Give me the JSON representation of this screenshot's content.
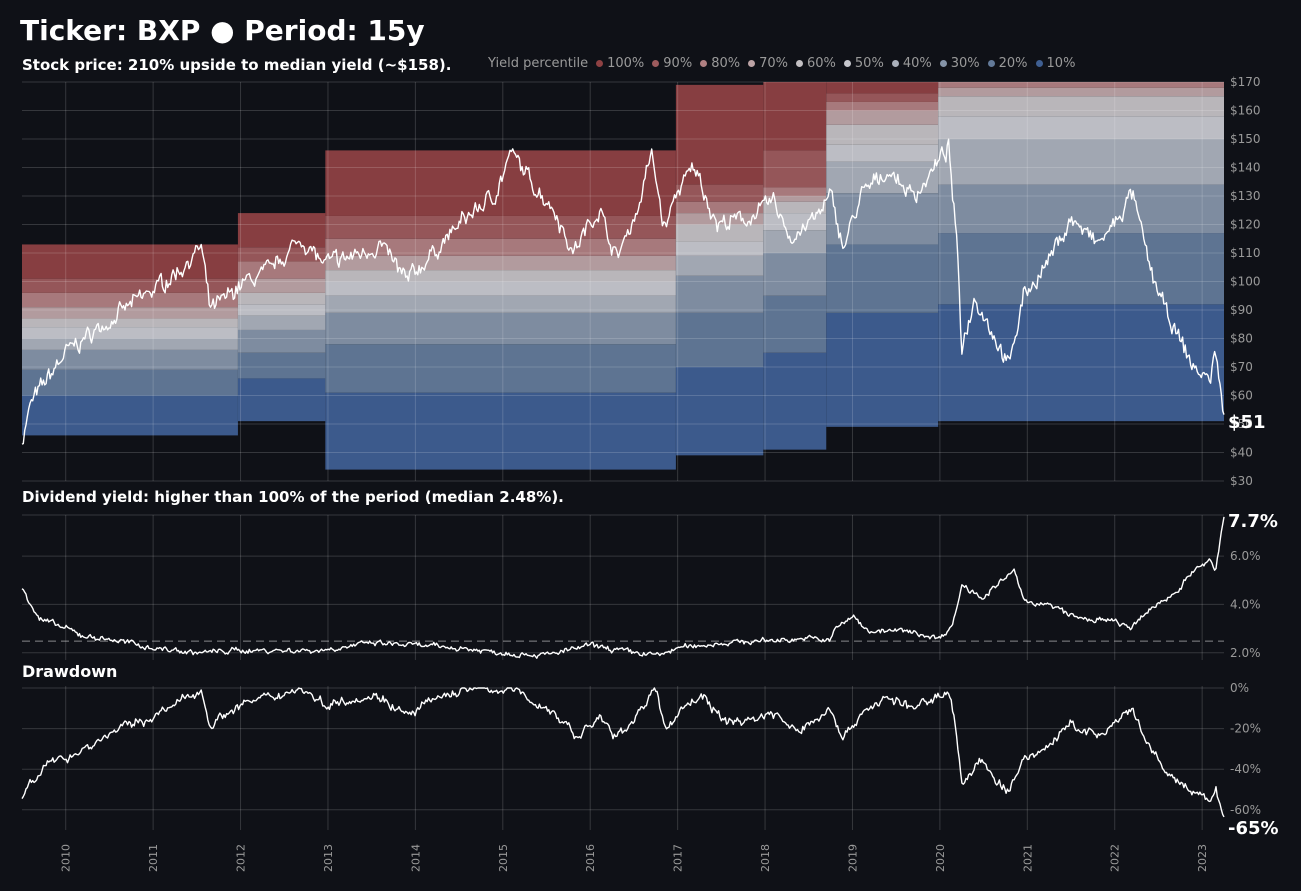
{
  "header": {
    "title": "Ticker: BXP  ●  Period: 15y",
    "price_subtitle": "Stock price:  210% upside to median yield (~$158).",
    "yield_subtitle": "Dividend yield: higher than 100% of the period (median 2.48%).",
    "drawdown_subtitle": "Drawdown"
  },
  "legend": {
    "label": "Yield percentile",
    "entries": [
      {
        "label": "100%",
        "color": "#8e4143"
      },
      {
        "label": "90%",
        "color": "#9d5b5d"
      },
      {
        "label": "80%",
        "color": "#b08082"
      },
      {
        "label": "70%",
        "color": "#bca3a5"
      },
      {
        "label": "60%",
        "color": "#c3c0c3"
      },
      {
        "label": "50%",
        "color": "#c6c7cd"
      },
      {
        "label": "40%",
        "color": "#aab0bb"
      },
      {
        "label": "30%",
        "color": "#8594a8"
      },
      {
        "label": "20%",
        "color": "#637a99"
      },
      {
        "label": "10%",
        "color": "#3f5f92"
      }
    ]
  },
  "chart_data": [
    {
      "type": "area",
      "name": "price",
      "ylim": [
        30,
        170
      ],
      "y_ticks": [
        "$30",
        "$40",
        "$50",
        "$60",
        "$70",
        "$80",
        "$90",
        "$100",
        "$110",
        "$120",
        "$130",
        "$140",
        "$150",
        "$160",
        "$170"
      ],
      "x_ticks": [
        "2010",
        "2011",
        "2012",
        "2013",
        "2014",
        "2015",
        "2016",
        "2017",
        "2018",
        "2019",
        "2020",
        "2021",
        "2022",
        "2023"
      ],
      "last_label": "$51",
      "bands": [
        {
          "start": 2009.5,
          "end": 2011.97,
          "levels": [
            46,
            60,
            69,
            76,
            80,
            84,
            87,
            91,
            96,
            101,
            113
          ]
        },
        {
          "start": 2011.97,
          "end": 2012.97,
          "levels": [
            51,
            66,
            75,
            83,
            88,
            92,
            96,
            101,
            107,
            112,
            124
          ]
        },
        {
          "start": 2012.97,
          "end": 2016.98,
          "levels": [
            34,
            61,
            78,
            89,
            95,
            100,
            104,
            109,
            115,
            123,
            146
          ]
        },
        {
          "start": 2016.98,
          "end": 2017.98,
          "levels": [
            39,
            70,
            89,
            102,
            109,
            114,
            120,
            124,
            128,
            134,
            169
          ]
        },
        {
          "start": 2017.98,
          "end": 2018.7,
          "levels": [
            41,
            75,
            95,
            110,
            118,
            124,
            128,
            130,
            133,
            146,
            170
          ]
        },
        {
          "start": 2018.7,
          "end": 2019.98,
          "levels": [
            49,
            89,
            113,
            131,
            142,
            148,
            155,
            160,
            163,
            166,
            170
          ]
        },
        {
          "start": 2019.98,
          "end": 2023.25,
          "levels": [
            51,
            92,
            117,
            134,
            150,
            158,
            165,
            168,
            170,
            170,
            170
          ]
        }
      ],
      "key_points": [
        [
          2009.5,
          44
        ],
        [
          2009.6,
          57
        ],
        [
          2009.75,
          64
        ],
        [
          2010.0,
          75
        ],
        [
          2010.3,
          82
        ],
        [
          2010.5,
          86
        ],
        [
          2010.8,
          93
        ],
        [
          2011.0,
          97
        ],
        [
          2011.3,
          104
        ],
        [
          2011.55,
          112
        ],
        [
          2011.65,
          90
        ],
        [
          2011.8,
          93
        ],
        [
          2012.0,
          99
        ],
        [
          2012.3,
          103
        ],
        [
          2012.7,
          115
        ],
        [
          2012.95,
          106
        ],
        [
          2013.3,
          109
        ],
        [
          2013.6,
          113
        ],
        [
          2013.9,
          100
        ],
        [
          2014.2,
          110
        ],
        [
          2014.6,
          123
        ],
        [
          2014.9,
          130
        ],
        [
          2015.1,
          145
        ],
        [
          2015.3,
          136
        ],
        [
          2015.6,
          125
        ],
        [
          2015.8,
          110
        ],
        [
          2016.1,
          126
        ],
        [
          2016.3,
          108
        ],
        [
          2016.55,
          126
        ],
        [
          2016.7,
          145
        ],
        [
          2016.85,
          118
        ],
        [
          2017.0,
          132
        ],
        [
          2017.2,
          140
        ],
        [
          2017.45,
          120
        ],
        [
          2017.8,
          122
        ],
        [
          2018.1,
          128
        ],
        [
          2018.3,
          115
        ],
        [
          2018.6,
          123
        ],
        [
          2018.75,
          130
        ],
        [
          2018.9,
          112
        ],
        [
          2019.1,
          130
        ],
        [
          2019.4,
          139
        ],
        [
          2019.7,
          130
        ],
        [
          2019.9,
          138
        ],
        [
          2020.1,
          147
        ],
        [
          2020.2,
          110
        ],
        [
          2020.25,
          77
        ],
        [
          2020.4,
          95
        ],
        [
          2020.8,
          70
        ],
        [
          2020.95,
          95
        ],
        [
          2021.2,
          105
        ],
        [
          2021.5,
          122
        ],
        [
          2021.8,
          113
        ],
        [
          2022.0,
          120
        ],
        [
          2022.2,
          131
        ],
        [
          2022.4,
          105
        ],
        [
          2022.6,
          88
        ],
        [
          2022.9,
          70
        ],
        [
          2023.1,
          65
        ],
        [
          2023.15,
          78
        ],
        [
          2023.25,
          51
        ]
      ]
    },
    {
      "type": "line",
      "name": "dividend yield",
      "ylim": [
        1.7,
        7.7
      ],
      "y_ticks": [
        "2.0%",
        "4.0%",
        "6.0%"
      ],
      "median": 2.48,
      "last_label": "7.7%",
      "key_points": [
        [
          2009.5,
          4.7
        ],
        [
          2009.7,
          3.4
        ],
        [
          2010.0,
          3.0
        ],
        [
          2010.2,
          2.7
        ],
        [
          2010.6,
          2.5
        ],
        [
          2011.0,
          2.2
        ],
        [
          2011.5,
          2.0
        ],
        [
          2012.0,
          2.1
        ],
        [
          2012.5,
          2.1
        ],
        [
          2012.9,
          2.1
        ],
        [
          2013.5,
          2.4
        ],
        [
          2014.0,
          2.3
        ],
        [
          2014.5,
          2.2
        ],
        [
          2015.0,
          2.0
        ],
        [
          2015.5,
          1.9
        ],
        [
          2016.0,
          2.3
        ],
        [
          2016.5,
          2.0
        ],
        [
          2016.8,
          1.9
        ],
        [
          2017.0,
          2.2
        ],
        [
          2017.5,
          2.4
        ],
        [
          2018.0,
          2.5
        ],
        [
          2018.5,
          2.6
        ],
        [
          2018.75,
          2.5
        ],
        [
          2018.8,
          3.0
        ],
        [
          2019.0,
          3.5
        ],
        [
          2019.2,
          2.9
        ],
        [
          2019.6,
          2.9
        ],
        [
          2020.0,
          2.6
        ],
        [
          2020.15,
          3.2
        ],
        [
          2020.25,
          4.8
        ],
        [
          2020.5,
          4.3
        ],
        [
          2020.85,
          5.4
        ],
        [
          2020.95,
          4.2
        ],
        [
          2021.3,
          3.9
        ],
        [
          2021.6,
          3.4
        ],
        [
          2022.0,
          3.3
        ],
        [
          2022.2,
          3.0
        ],
        [
          2022.4,
          3.8
        ],
        [
          2022.7,
          4.5
        ],
        [
          2022.9,
          5.4
        ],
        [
          2023.1,
          5.8
        ],
        [
          2023.15,
          5.3
        ],
        [
          2023.25,
          7.7
        ]
      ]
    },
    {
      "type": "line",
      "name": "drawdown",
      "ylim": [
        -68,
        1
      ],
      "y_ticks": [
        "0%",
        "-20%",
        "-40%",
        "-60%"
      ],
      "last_label": "-65%",
      "key_points": [
        [
          2009.5,
          -55
        ],
        [
          2009.6,
          -45
        ],
        [
          2009.8,
          -38
        ],
        [
          2010.0,
          -34
        ],
        [
          2010.3,
          -28
        ],
        [
          2010.6,
          -20
        ],
        [
          2010.9,
          -16
        ],
        [
          2011.2,
          -10
        ],
        [
          2011.4,
          -4
        ],
        [
          2011.55,
          -1
        ],
        [
          2011.65,
          -18
        ],
        [
          2011.8,
          -14
        ],
        [
          2012.0,
          -8
        ],
        [
          2012.3,
          -5
        ],
        [
          2012.7,
          0
        ],
        [
          2012.95,
          -8
        ],
        [
          2013.3,
          -5
        ],
        [
          2013.6,
          -4
        ],
        [
          2013.9,
          -14
        ],
        [
          2014.2,
          -6
        ],
        [
          2014.6,
          0
        ],
        [
          2015.0,
          -1
        ],
        [
          2015.1,
          0
        ],
        [
          2015.4,
          -8
        ],
        [
          2015.7,
          -16
        ],
        [
          2015.85,
          -25
        ],
        [
          2016.1,
          -14
        ],
        [
          2016.3,
          -25
        ],
        [
          2016.55,
          -12
        ],
        [
          2016.75,
          -1
        ],
        [
          2016.85,
          -20
        ],
        [
          2017.1,
          -8
        ],
        [
          2017.3,
          -4
        ],
        [
          2017.5,
          -16
        ],
        [
          2017.8,
          -16
        ],
        [
          2018.1,
          -12
        ],
        [
          2018.35,
          -22
        ],
        [
          2018.6,
          -15
        ],
        [
          2018.75,
          -10
        ],
        [
          2018.9,
          -25
        ],
        [
          2019.1,
          -12
        ],
        [
          2019.4,
          -5
        ],
        [
          2019.7,
          -10
        ],
        [
          2019.9,
          -6
        ],
        [
          2020.1,
          0
        ],
        [
          2020.2,
          -25
        ],
        [
          2020.25,
          -48
        ],
        [
          2020.45,
          -36
        ],
        [
          2020.8,
          -52
        ],
        [
          2020.95,
          -35
        ],
        [
          2021.2,
          -30
        ],
        [
          2021.5,
          -18
        ],
        [
          2021.8,
          -24
        ],
        [
          2022.0,
          -18
        ],
        [
          2022.2,
          -11
        ],
        [
          2022.4,
          -30
        ],
        [
          2022.6,
          -42
        ],
        [
          2022.9,
          -52
        ],
        [
          2023.1,
          -56
        ],
        [
          2023.15,
          -48
        ],
        [
          2023.25,
          -65
        ]
      ]
    }
  ]
}
